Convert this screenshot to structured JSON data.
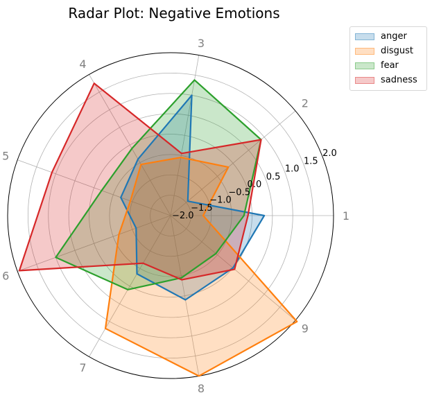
{
  "chart_data": {
    "type": "radar",
    "title": "Radar Plot: Negative Emotions",
    "axes": [
      "1",
      "2",
      "3",
      "4",
      "5",
      "6",
      "7",
      "8",
      "9"
    ],
    "radial_ticks": [
      "−2.0",
      "−1.5",
      "−1.0",
      "−0.5",
      "0.0",
      "0.5",
      "1.0",
      "1.5",
      "2.0"
    ],
    "radial_tick_values": [
      -2.0,
      -1.5,
      -1.0,
      -0.5,
      0.0,
      0.5,
      1.0,
      1.5,
      2.0
    ],
    "rlim": [
      -2.0,
      2.0
    ],
    "grid": true,
    "legend_position": "upper-right outside",
    "series": [
      {
        "name": "anger",
        "color": "#1f77b4",
        "values": [
          0.3,
          -1.45,
          1.0,
          -0.4,
          -0.7,
          -1.1,
          -0.35,
          0.1,
          0.0
        ]
      },
      {
        "name": "disgust",
        "color": "#ff7f0e",
        "values": [
          -1.2,
          -0.15,
          -0.55,
          -0.55,
          -0.95,
          -0.65,
          1.2,
          2.0,
          2.05
        ]
      },
      {
        "name": "fear",
        "color": "#2ca02c",
        "values": [
          -0.2,
          0.9,
          1.38,
          -0.1,
          -0.2,
          1.0,
          0.1,
          -0.45,
          -0.55
        ]
      },
      {
        "name": "sadness",
        "color": "#d62728",
        "values": [
          -0.1,
          0.9,
          -0.45,
          1.75,
          1.1,
          1.95,
          -0.65,
          -0.4,
          0.05
        ]
      }
    ]
  }
}
